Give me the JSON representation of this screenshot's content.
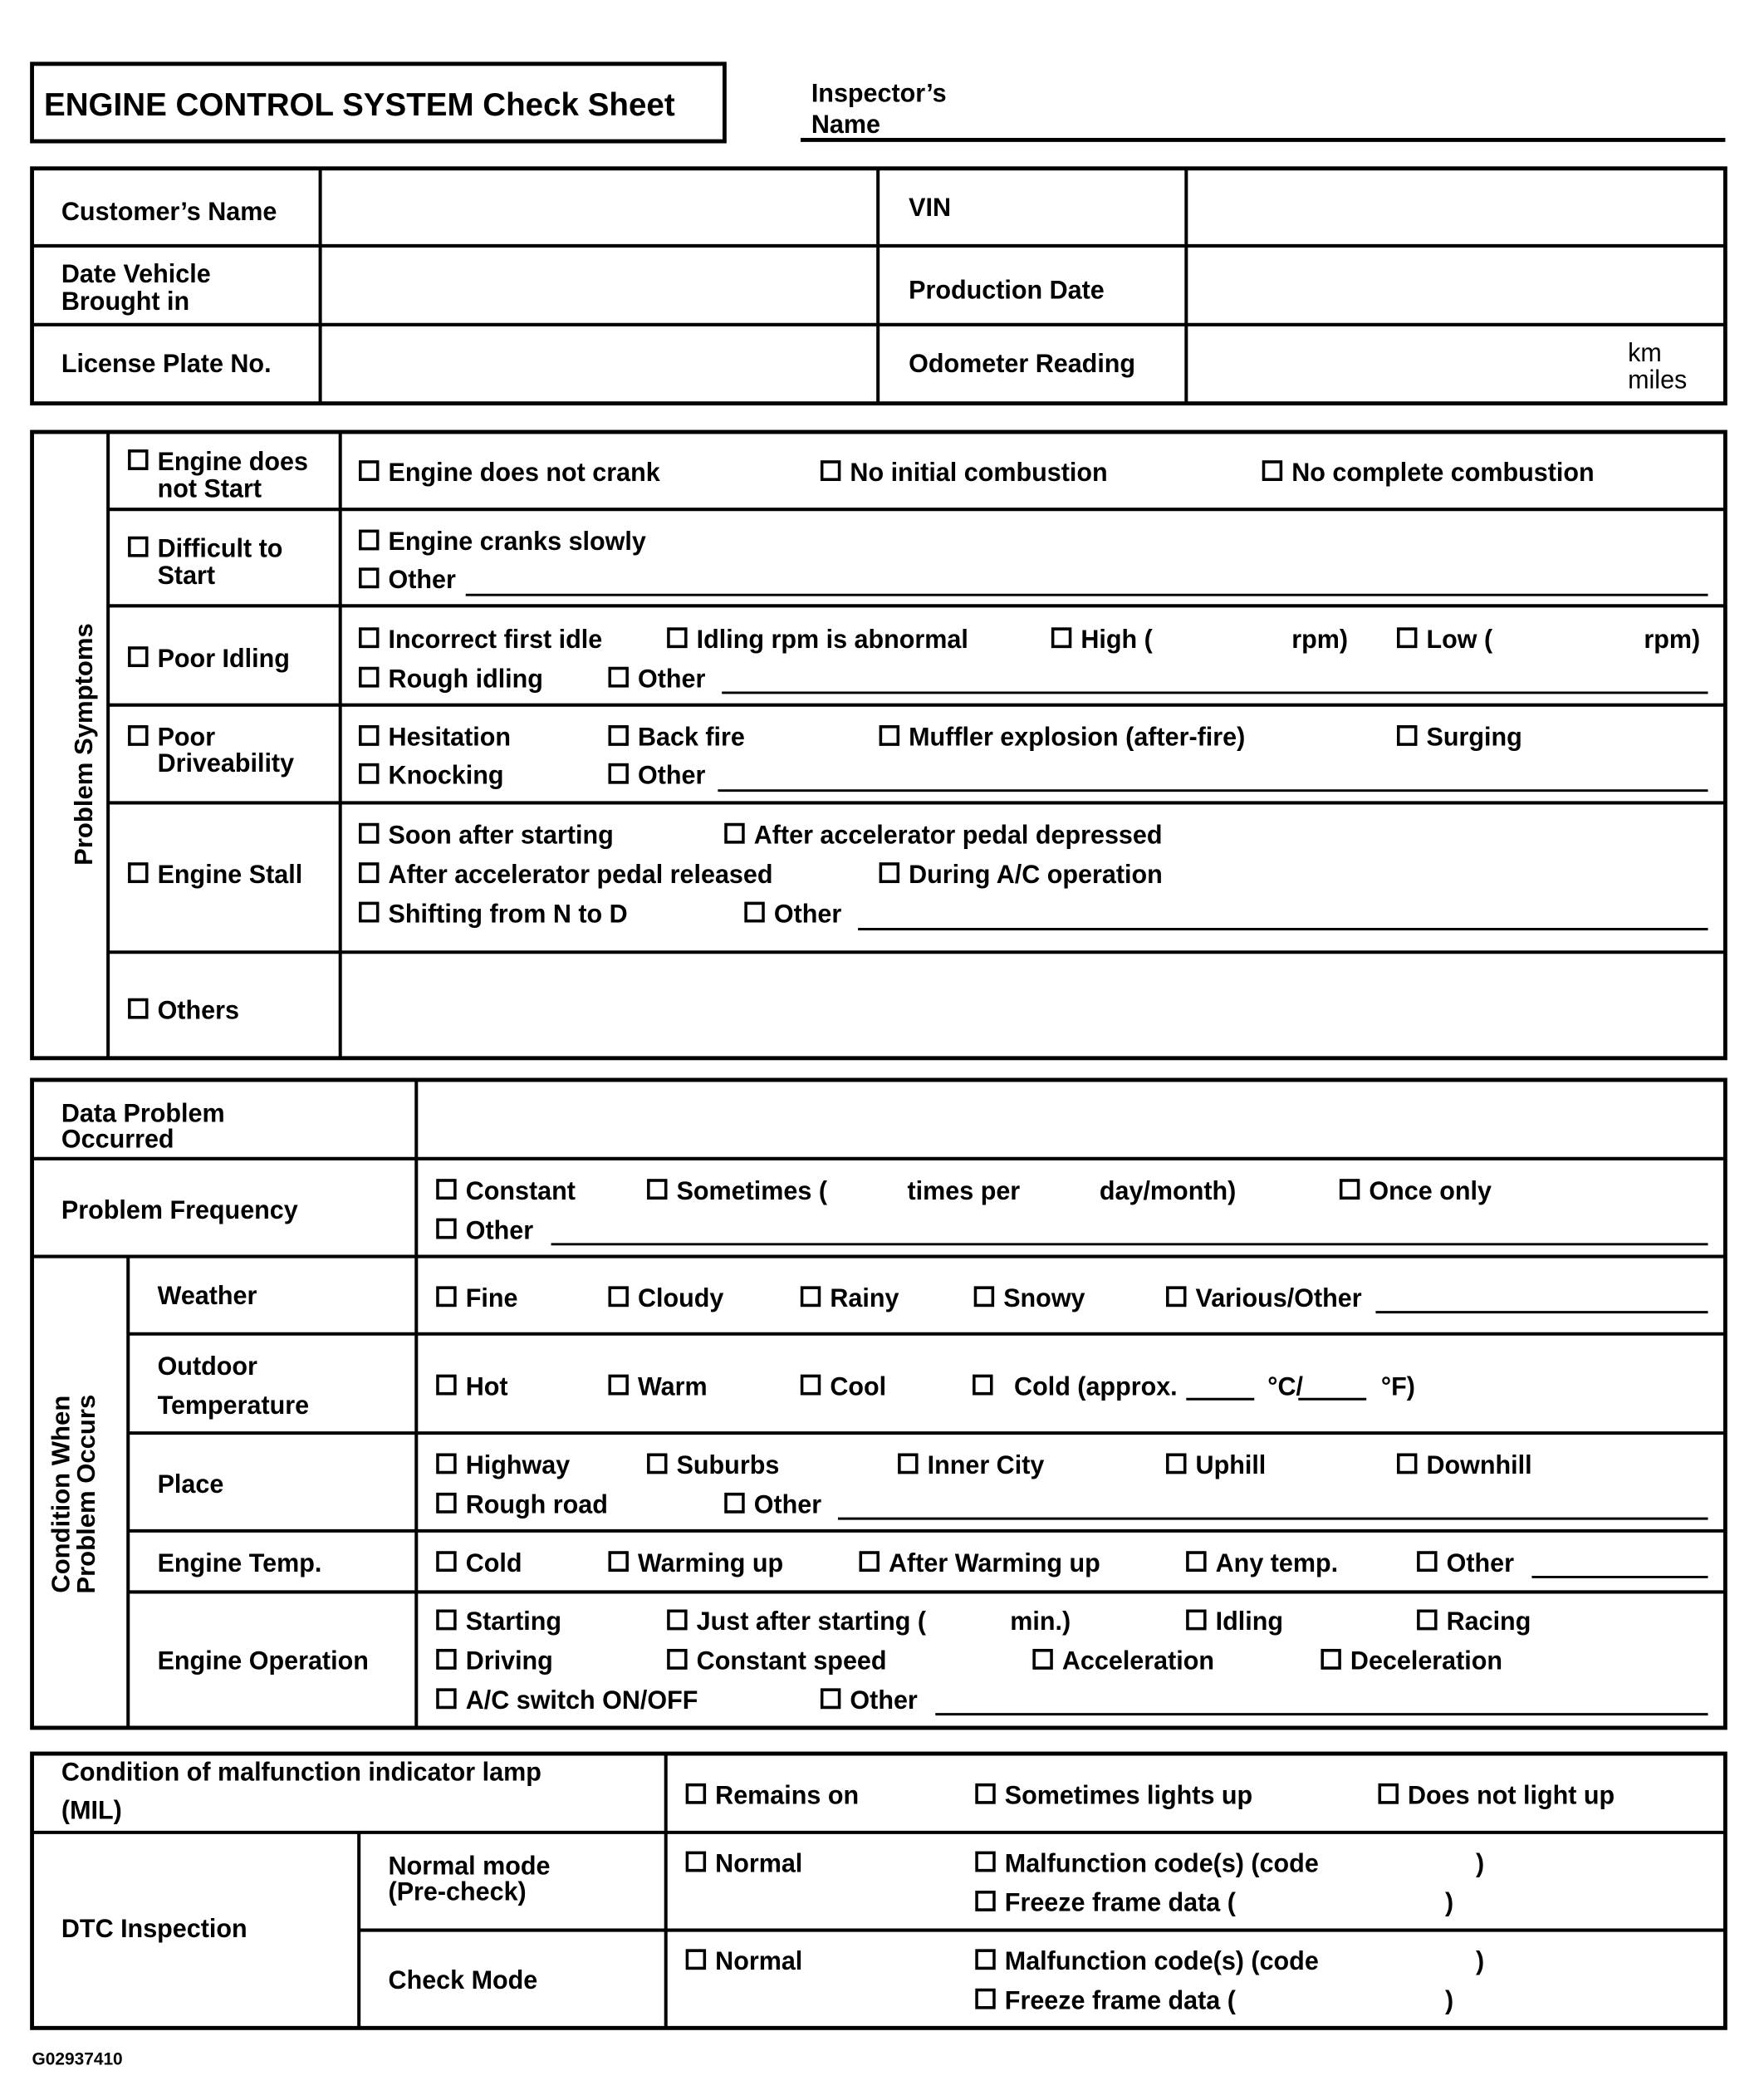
{
  "header": {
    "title": "ENGINE CONTROL SYSTEM Check Sheet",
    "inspector_label": [
      "Inspector’s",
      "Name"
    ]
  },
  "vehicle_info": {
    "customer_name": "Customer’s Name",
    "date_brought_in": [
      "Date Vehicle",
      "Brought in"
    ],
    "license_plate": "License Plate No.",
    "vin": "VIN",
    "production_date": "Production Date",
    "odometer": "Odometer Reading",
    "odometer_units": [
      "km",
      "miles"
    ]
  },
  "problem_symptoms": {
    "label": "Problem Symptoms",
    "rows": [
      {
        "label": [
          "Engine does",
          "not Start"
        ],
        "options": [
          "Engine does not crank",
          "No initial combustion",
          "No complete combustion"
        ]
      },
      {
        "label": [
          "Difficult to",
          "Start"
        ],
        "options": [
          "Engine cranks slowly",
          "Other"
        ]
      },
      {
        "label": [
          "Poor Idling"
        ],
        "options": [
          "Incorrect first idle",
          "Idling rpm is abnormal",
          "High (",
          "rpm)",
          "Low (",
          "rpm)",
          "Rough idling",
          "Other"
        ]
      },
      {
        "label": [
          "Poor",
          "Driveability"
        ],
        "options": [
          "Hesitation",
          "Back fire",
          "Muffler explosion (after-fire)",
          "Surging",
          "Knocking",
          "Other"
        ]
      },
      {
        "label": [
          "Engine Stall"
        ],
        "options": [
          "Soon after starting",
          "After accelerator pedal depressed",
          "After accelerator pedal released",
          "During A/C operation",
          "Shifting from N to D",
          "Other"
        ]
      },
      {
        "label": [
          "Others"
        ],
        "options": []
      }
    ]
  },
  "occurrence": {
    "date_label": [
      "Data Problem",
      "Occurred"
    ],
    "frequency": {
      "label": "Problem Frequency",
      "options": [
        "Constant",
        "Sometimes (",
        "times per",
        "day/month)",
        "Once only",
        "Other"
      ]
    },
    "conditions": {
      "label": [
        "Condition When",
        "Problem Occurs"
      ],
      "rows": [
        {
          "label": [
            "Weather"
          ],
          "options": [
            "Fine",
            "Cloudy",
            "Rainy",
            "Snowy",
            "Various/Other"
          ]
        },
        {
          "label": [
            "Outdoor",
            "Temperature"
          ],
          "options": [
            "Hot",
            "Warm",
            "Cool",
            "Cold (approx.",
            "°C/",
            "°F)"
          ]
        },
        {
          "label": [
            "Place"
          ],
          "options": [
            "Highway",
            "Suburbs",
            "Inner City",
            "Uphill",
            "Downhill",
            "Rough road",
            "Other"
          ]
        },
        {
          "label": [
            "Engine Temp."
          ],
          "options": [
            "Cold",
            "Warming up",
            "After Warming up",
            "Any temp.",
            "Other"
          ]
        },
        {
          "label": [
            "Engine Operation"
          ],
          "options": [
            "Starting",
            "Just after starting (",
            "min.)",
            "Idling",
            "Racing",
            "Driving",
            "Constant speed",
            "Acceleration",
            "Deceleration",
            "A/C switch ON/OFF",
            "Other"
          ]
        }
      ]
    }
  },
  "mil": {
    "label": [
      "Condition of malfunction indicator lamp",
      "(MIL)"
    ],
    "options": [
      "Remains on",
      "Sometimes lights up",
      "Does not light up"
    ]
  },
  "dtc": {
    "label": "DTC Inspection",
    "modes": [
      {
        "label": [
          "Normal mode",
          "(Pre-check)"
        ],
        "options": [
          "Normal",
          "Malfunction code(s) (code",
          ")",
          "Freeze frame data (",
          ")"
        ]
      },
      {
        "label": [
          "Check Mode"
        ],
        "options": [
          "Normal",
          "Malfunction code(s) (code",
          ")",
          "Freeze frame data (",
          ")"
        ]
      }
    ]
  },
  "footer": {
    "code": "G02937410"
  }
}
